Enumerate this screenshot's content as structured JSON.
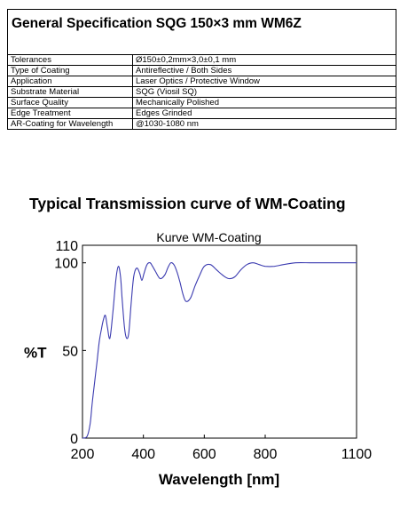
{
  "spec": {
    "title": "General Specification SQG 150×3 mm WM6Z",
    "rows": [
      {
        "label": "Tolerances",
        "value": "Ø150±0,2mm×3,0±0,1 mm"
      },
      {
        "label": "Type of Coating",
        "value": "Antireflective / Both Sides"
      },
      {
        "label": "Application",
        "value": "Laser Optics / Protective Window"
      },
      {
        "label": "Substrate Material",
        "value": "SQG (Viosil SQ)"
      },
      {
        "label": "Surface Quality",
        "value": "Mechanically Polished"
      },
      {
        "label": "Edge Treatment",
        "value": "Edges Grinded"
      },
      {
        "label": "AR-Coating for Wavelength",
        "value": "@1030-1080 nm"
      }
    ]
  },
  "chart_title": "Typical Transmission curve of WM-Coating",
  "chart_data": {
    "type": "line",
    "title": "Kurve WM-Coating",
    "xlabel": "Wavelength [nm]",
    "ylabel": "%T",
    "xlim": [
      200,
      1100
    ],
    "ylim": [
      0,
      110
    ],
    "x_ticks": [
      200,
      400,
      600,
      800,
      1100
    ],
    "y_ticks": [
      0,
      50,
      100,
      110
    ],
    "grid": false,
    "line_color": "#3b3bb0",
    "series": [
      {
        "x": [
          200,
          215,
          225,
          232,
          240,
          248,
          255,
          262,
          268,
          275,
          282,
          290,
          300,
          310,
          318,
          325,
          330,
          338,
          345,
          352,
          360,
          368,
          378,
          388,
          395,
          402,
          412,
          422,
          430,
          440,
          455,
          470,
          480,
          490,
          500,
          510,
          520,
          530,
          540,
          555,
          570,
          585,
          600,
          620,
          640,
          660,
          680,
          700,
          720,
          740,
          760,
          780,
          800,
          830,
          860,
          900,
          950,
          1000,
          1050,
          1100
        ],
        "y": [
          0,
          1,
          8,
          20,
          32,
          44,
          55,
          62,
          67,
          70,
          63,
          57,
          72,
          91,
          98,
          92,
          80,
          63,
          57,
          60,
          77,
          92,
          97,
          94,
          90,
          94,
          99,
          100,
          98,
          95,
          91,
          93,
          97,
          100,
          99,
          95,
          89,
          82,
          78,
          80,
          87,
          93,
          98,
          99,
          96,
          93,
          91,
          92,
          96,
          99,
          100,
          99,
          98,
          98,
          99,
          100,
          100,
          100,
          100,
          100
        ]
      }
    ]
  }
}
